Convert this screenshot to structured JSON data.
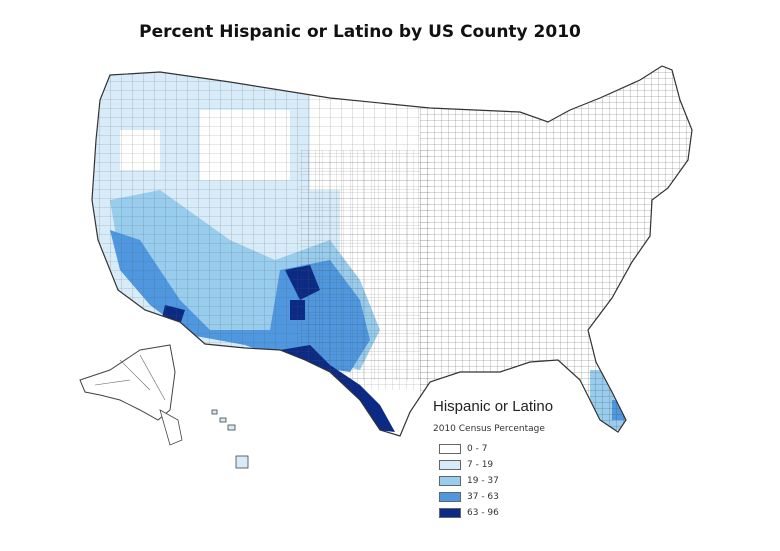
{
  "map": {
    "title": "Percent Hispanic or Latino by US County 2010"
  },
  "legend": {
    "title": "Hispanic or Latino",
    "subtitle": "2010 Census Percentage",
    "classes": [
      {
        "label": "0 - 7",
        "color": "#ffffff"
      },
      {
        "label": "7 - 19",
        "color": "#d7ecf8"
      },
      {
        "label": "19 - 37",
        "color": "#99cdee"
      },
      {
        "label": "37 - 63",
        "color": "#4f98e0"
      },
      {
        "label": "63 - 96",
        "color": "#0b2a86"
      }
    ]
  }
}
